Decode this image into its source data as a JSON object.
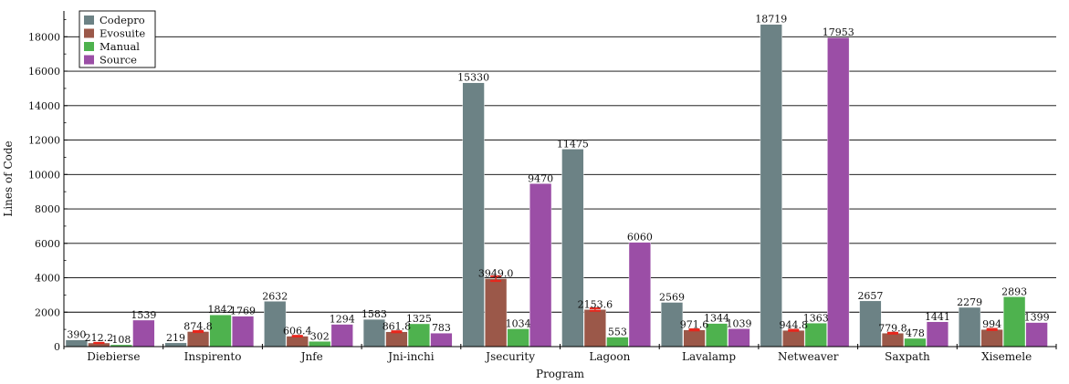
{
  "chart_data": {
    "type": "bar",
    "title": "",
    "xlabel": "Program",
    "ylabel": "Lines of Code",
    "ylim": [
      0,
      19500
    ],
    "yticks": [
      0,
      2000,
      4000,
      6000,
      8000,
      10000,
      12000,
      14000,
      16000,
      18000
    ],
    "ytick_labels": [
      "0",
      "2000",
      "4000",
      "6000",
      "8000",
      "10000",
      "12000",
      "14000",
      "16000",
      "18000"
    ],
    "grid": true,
    "legend_position": "top-left",
    "categories": [
      "Diebierse",
      "Inspirento",
      "Jnfe",
      "Jni-inchi",
      "Jsecurity",
      "Lagoon",
      "Lavalamp",
      "Netweaver",
      "Saxpath",
      "Xisemele"
    ],
    "series": [
      {
        "name": "Codepro",
        "color": "#6c8285",
        "values": [
          390,
          219,
          2632,
          1583,
          15330,
          11475,
          2569,
          18719,
          2657,
          2279
        ],
        "labels": [
          "390",
          "219",
          "2632",
          "1583",
          "15330",
          "11475",
          "2569",
          "18719",
          "2657",
          "2279"
        ]
      },
      {
        "name": "Evosuite",
        "color": "#9b5849",
        "values": [
          212.2,
          874.8,
          606.4,
          861.8,
          3949.0,
          2153.6,
          971.6,
          944.8,
          779.8,
          994
        ],
        "labels": [
          "212.2",
          "874.8",
          "606.4",
          "861.8",
          "3949.0",
          "2153.6",
          "971.6",
          "944.8",
          "779.8",
          "994"
        ],
        "error_bars": true
      },
      {
        "name": "Manual",
        "color": "#4eb24e",
        "values": [
          108,
          1842,
          302,
          1325,
          1034,
          553,
          1344,
          1363,
          478,
          2893
        ],
        "labels": [
          "108",
          "1842",
          "302",
          "1325",
          "1034",
          "553",
          "1344",
          "1363",
          "478",
          "2893"
        ]
      },
      {
        "name": "Source",
        "color": "#9b4ea6",
        "values": [
          1539,
          1769,
          1294,
          783,
          9470,
          6060,
          1039,
          17953,
          1441,
          1399
        ],
        "labels": [
          "1539",
          "1769",
          "1294",
          "783",
          "9470",
          "6060",
          "1039",
          "17953",
          "1441",
          "1399"
        ]
      }
    ]
  }
}
